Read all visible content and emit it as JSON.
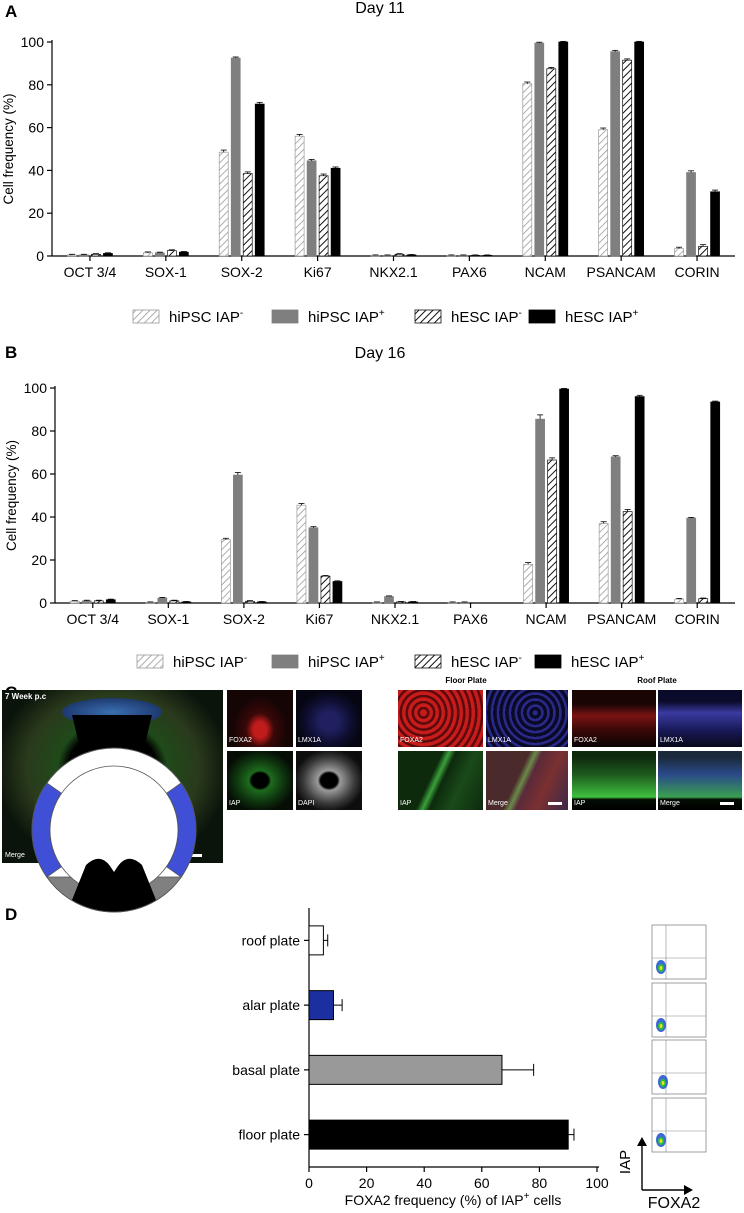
{
  "panels": {
    "a": "A",
    "b": "B",
    "c": "C",
    "d": "D"
  },
  "chart_data": [
    {
      "type": "bar",
      "title": "Day 11",
      "ylabel": "Cell frequency (%)",
      "ylim": [
        0,
        100
      ],
      "yticks": [
        0,
        20,
        40,
        60,
        80,
        100
      ],
      "categories": [
        "OCT 3/4",
        "SOX-1",
        "SOX-2",
        "Ki67",
        "NKX2.1",
        "PAX6",
        "NCAM",
        "PSANCAM",
        "CORIN"
      ],
      "series": [
        {
          "name": "hiPSC IAP",
          "name_sup": "-",
          "values": [
            0.5,
            1.5,
            48.5,
            56,
            0.3,
            0.3,
            80.5,
            59,
            3.5
          ],
          "errors": [
            0.3,
            0.4,
            1,
            0.8,
            0.2,
            0.2,
            0.8,
            0.8,
            0.6
          ]
        },
        {
          "name": "hiPSC IAP",
          "name_sup": "+",
          "values": [
            0.5,
            1.5,
            92.5,
            44.5,
            0.3,
            0.3,
            99.5,
            95.5,
            39
          ],
          "errors": [
            0.3,
            0.3,
            0.5,
            0.6,
            0.2,
            0.2,
            0.4,
            0.6,
            0.8
          ]
        },
        {
          "name": "hESC IAP",
          "name_sup": "-",
          "values": [
            0.8,
            2.5,
            38.5,
            37.5,
            0.8,
            0.3,
            87.5,
            91.5,
            4.5
          ],
          "errors": [
            0.3,
            0.4,
            0.8,
            0.8,
            0.3,
            0.2,
            0.6,
            0.6,
            0.8
          ]
        },
        {
          "name": "hESC IAP",
          "name_sup": "+",
          "values": [
            1.2,
            1.8,
            71,
            41,
            0.5,
            0.3,
            100,
            100,
            30
          ],
          "errors": [
            0.3,
            0.3,
            0.8,
            0.6,
            0.2,
            0.2,
            0.3,
            0.3,
            0.8
          ]
        }
      ],
      "legend_position": "bottom"
    },
    {
      "type": "bar",
      "title": "Day 16",
      "ylabel": "Cell frequency (%)",
      "ylim": [
        0,
        100
      ],
      "yticks": [
        0,
        20,
        40,
        60,
        80,
        100
      ],
      "categories": [
        "OCT 3/4",
        "SOX-1",
        "SOX-2",
        "Ki67",
        "NKX2.1",
        "PAX6",
        "NCAM",
        "PSANCAM",
        "CORIN"
      ],
      "series": [
        {
          "name": "hiPSC IAP",
          "name_sup": "-",
          "values": [
            0.8,
            0.3,
            29.5,
            45.5,
            0.3,
            0.3,
            18,
            37,
            1.8
          ],
          "errors": [
            0.3,
            0.2,
            0.6,
            0.8,
            0.2,
            0.2,
            0.8,
            0.8,
            0.3
          ]
        },
        {
          "name": "hiPSC IAP",
          "name_sup": "+",
          "values": [
            1,
            2.3,
            59.5,
            35,
            3,
            0.3,
            85.5,
            68,
            39.5
          ],
          "errors": [
            0.3,
            0.3,
            1.2,
            0.5,
            0.3,
            0.2,
            2,
            0.5,
            0.3
          ]
        },
        {
          "name": "hESC IAP",
          "name_sup": "-",
          "values": [
            1,
            1,
            0.8,
            12.5,
            0.5,
            0,
            66.5,
            42.5,
            2
          ],
          "errors": [
            0.3,
            0.3,
            0.3,
            0.3,
            0.2,
            0,
            1,
            1,
            0.3
          ]
        },
        {
          "name": "hESC IAP",
          "name_sup": "+",
          "values": [
            1.5,
            0.5,
            0.5,
            10,
            0.5,
            0,
            99.5,
            96,
            93.5
          ],
          "errors": [
            0.3,
            0.2,
            0.2,
            0.3,
            0.2,
            0,
            0.3,
            0.6,
            0.4
          ]
        }
      ],
      "legend_position": "bottom"
    },
    {
      "type": "bar",
      "orientation": "horizontal",
      "xlabel": "FOXA2 frequency (%) of IAP",
      "xlabel_sup": "+",
      "xlabel_tail": " cells",
      "xlim": [
        0,
        100
      ],
      "xticks": [
        0,
        20,
        40,
        60,
        80,
        100
      ],
      "categories": [
        "roof plate",
        "alar plate",
        "basal plate",
        "floor plate"
      ],
      "values": [
        5,
        8.5,
        67,
        90
      ],
      "errors": [
        1.5,
        3,
        11,
        2
      ],
      "colors": [
        "#ffffff",
        "#1c2fa0",
        "#999999",
        "#000000"
      ]
    }
  ],
  "panel_c": {
    "main_label": "7 Week p.c",
    "floor_plate": "Floor Plate",
    "roof_plate": "Roof Plate",
    "tiles": [
      {
        "id": "t1",
        "label": "FOXA2"
      },
      {
        "id": "t2",
        "label": "LMX1A"
      },
      {
        "id": "t3",
        "label": "IAP"
      },
      {
        "id": "t4",
        "label": "DAPI"
      },
      {
        "id": "t5",
        "label": "FOXA2"
      },
      {
        "id": "t6",
        "label": "LMX1A"
      },
      {
        "id": "t7",
        "label": "IAP"
      },
      {
        "id": "t8",
        "label": "Merge"
      },
      {
        "id": "t9",
        "label": "FOXA2"
      },
      {
        "id": "t10",
        "label": "LMX1A"
      },
      {
        "id": "t11",
        "label": "IAP"
      },
      {
        "id": "t12",
        "label": "Merge"
      }
    ],
    "merge_label": "Merge"
  },
  "panel_d": {
    "flow_ylabel": "IAP",
    "flow_xlabel": "FOXA2",
    "colors": {
      "alar": "#3f4fd6",
      "basal": "#808080",
      "floor": "#000000"
    }
  }
}
